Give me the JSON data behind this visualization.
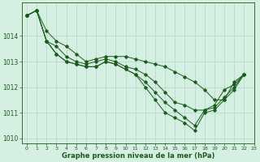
{
  "xlabel": "Graphe pression niveau de la mer (hPa)",
  "xlim": [
    -0.5,
    23
  ],
  "ylim": [
    1009.8,
    1015.3
  ],
  "yticks": [
    1010,
    1011,
    1012,
    1013,
    1014
  ],
  "xticks": [
    0,
    1,
    2,
    3,
    4,
    5,
    6,
    7,
    8,
    9,
    10,
    11,
    12,
    13,
    14,
    15,
    16,
    17,
    18,
    19,
    20,
    21,
    22,
    23
  ],
  "bg_color": "#d6efe3",
  "line_color": "#1a5c1a",
  "grid_color": "#b0d9c0",
  "series": [
    [
      1014.8,
      1015.0,
      1014.2,
      1013.8,
      1013.6,
      1013.3,
      1013.0,
      1013.1,
      1013.2,
      1013.2,
      1013.2,
      1013.1,
      1013.0,
      1012.9,
      1012.8,
      1012.6,
      1012.4,
      1012.2,
      1011.9,
      1011.5,
      1011.5,
      1012.2,
      1012.5,
      null
    ],
    [
      1014.8,
      1015.0,
      1013.8,
      1013.6,
      1013.2,
      1013.0,
      1012.9,
      1013.0,
      1013.1,
      1013.0,
      1012.8,
      1012.7,
      1012.5,
      1012.2,
      1011.8,
      1011.4,
      1011.3,
      1011.1,
      1011.1,
      1011.3,
      1011.9,
      1012.1,
      1012.5,
      null
    ],
    [
      1014.8,
      1015.0,
      1013.8,
      1013.3,
      1013.0,
      1012.9,
      1012.8,
      1012.8,
      1013.0,
      1012.9,
      1012.7,
      1012.5,
      1012.2,
      1011.8,
      1011.4,
      1011.1,
      1010.8,
      1010.5,
      1011.1,
      1011.2,
      1011.6,
      1012.0,
      1012.5,
      null
    ],
    [
      1014.8,
      1015.0,
      1013.8,
      1013.3,
      1013.0,
      1012.9,
      1012.8,
      1012.8,
      1013.0,
      1012.9,
      1012.7,
      1012.5,
      1012.0,
      1011.5,
      1011.0,
      1010.8,
      1010.6,
      1010.3,
      1011.0,
      1011.1,
      1011.5,
      1011.9,
      1012.5,
      null
    ]
  ]
}
